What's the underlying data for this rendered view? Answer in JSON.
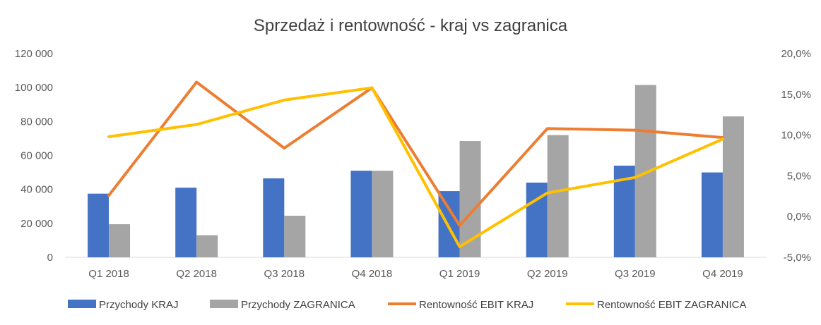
{
  "chart_data": {
    "type": "bar",
    "title": "Sprzedaż i rentowność - kraj vs zagranica",
    "categories": [
      "Q1 2018",
      "Q2 2018",
      "Q3 2018",
      "Q4 2018",
      "Q1 2019",
      "Q2 2019",
      "Q3 2019",
      "Q4 2019"
    ],
    "y_left": {
      "ylim": [
        0,
        120000
      ],
      "ticks": [
        0,
        20000,
        40000,
        60000,
        80000,
        100000,
        120000
      ],
      "tick_labels": [
        "0",
        "20 000",
        "40 000",
        "60 000",
        "80 000",
        "100 000",
        "120 000"
      ]
    },
    "y_right": {
      "ylim": [
        -0.05,
        0.2
      ],
      "ticks": [
        -0.05,
        0.0,
        0.05,
        0.1,
        0.15,
        0.2
      ],
      "tick_labels": [
        "-5,0%",
        "0,0%",
        "5,0%",
        "10,0%",
        "15,0%",
        "20,0%"
      ]
    },
    "series": [
      {
        "name": "Przychody KRAJ",
        "type": "bar",
        "axis": "left",
        "color": "#4472C4",
        "values": [
          37500,
          41000,
          46500,
          51000,
          39000,
          44000,
          54000,
          50000
        ]
      },
      {
        "name": "Przychody ZAGRANICA",
        "type": "bar",
        "axis": "left",
        "color": "#A5A5A5",
        "values": [
          19500,
          13000,
          24500,
          51000,
          68500,
          72000,
          101500,
          83000
        ]
      },
      {
        "name": "Rentowność EBIT KRAJ",
        "type": "line",
        "axis": "right",
        "color": "#ED7D31",
        "values": [
          0.026,
          0.165,
          0.084,
          0.158,
          -0.011,
          0.108,
          0.106,
          0.097
        ]
      },
      {
        "name": "Rentowność EBIT ZAGRANICA",
        "type": "line",
        "axis": "right",
        "color": "#FFC000",
        "values": [
          0.098,
          0.113,
          0.143,
          0.158,
          -0.037,
          0.029,
          0.048,
          0.095
        ]
      }
    ],
    "grid": false,
    "legend": "bottom"
  }
}
